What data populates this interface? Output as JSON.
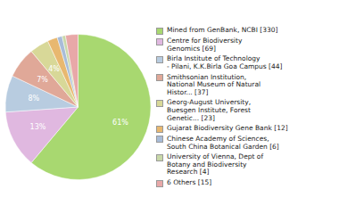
{
  "chart_data": {
    "type": "pie",
    "categories": [
      "Mined from GenBank, NCBI [330]",
      "Centre for Biodiversity\nGenomics [69]",
      "Birla Institute of Technology\n- Pilani, K.K.Birla Goa Campus [44]",
      "Smithsonian Institution,\nNational Museum of Natural\nHistor... [37]",
      "Georg-August University,\nBuesgen Institute, Forest\nGenetic... [23]",
      "Gujarat Biodiversity Gene Bank [12]",
      "Chinese Academy of Sciences,\nSouth China Botanical Garden [6]",
      "University of Vienna, Dept of\nBotany and Biodiversity\nResearch [4]",
      "6 Others [15]"
    ],
    "values": [
      330,
      69,
      44,
      37,
      23,
      12,
      6,
      4,
      15
    ],
    "colors": [
      "#a8d870",
      "#e0b8e0",
      "#b8cce0",
      "#e0a898",
      "#d8d898",
      "#e8b870",
      "#a8bcd8",
      "#c8d8a8",
      "#e8a8a8"
    ],
    "data_labels": true,
    "value_labels": [
      "61%",
      "13%",
      "8%",
      "7%",
      "4%",
      null,
      null,
      null,
      null
    ],
    "legend": "right"
  }
}
